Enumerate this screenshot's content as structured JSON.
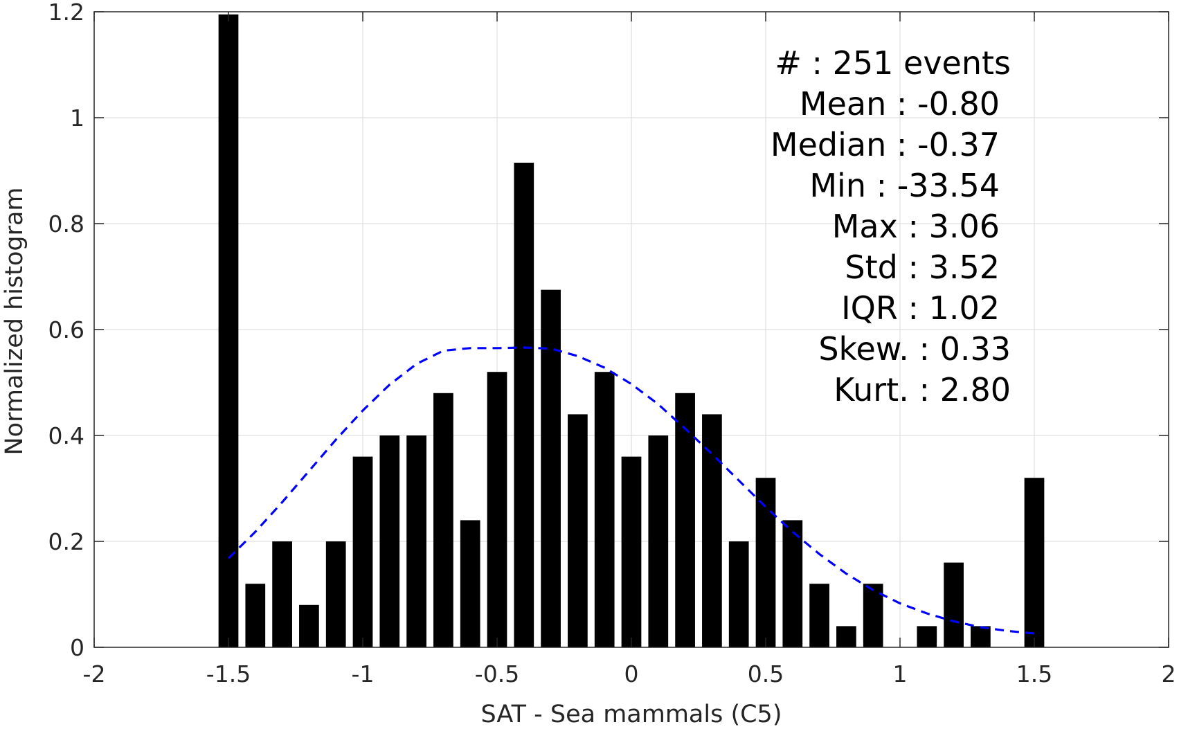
{
  "chart_data": {
    "type": "bar",
    "title": "",
    "xlabel": "SAT - Sea mammals (C5)",
    "ylabel": "Normalized histogram",
    "xlim": [
      -2,
      2
    ],
    "ylim": [
      0,
      1.2
    ],
    "grid": true,
    "x_ticks": [
      "-2",
      "-1.5",
      "-1",
      "-0.5",
      "0",
      "0.5",
      "1",
      "1.5",
      "2"
    ],
    "y_ticks": [
      "0",
      "0.2",
      "0.4",
      "0.6",
      "0.8",
      "1",
      "1.2"
    ],
    "bar_color": "#000000",
    "bin_width": 0.1,
    "bins": {
      "x": [
        -1.5,
        -1.4,
        -1.3,
        -1.2,
        -1.1,
        -1.0,
        -0.9,
        -0.8,
        -0.7,
        -0.6,
        -0.5,
        -0.4,
        -0.3,
        -0.2,
        -0.1,
        0.0,
        0.1,
        0.2,
        0.3,
        0.4,
        0.5,
        0.6,
        0.7,
        0.8,
        0.9,
        1.0,
        1.1,
        1.2,
        1.3,
        1.4,
        1.5
      ],
      "values": [
        1.195,
        0.12,
        0.2,
        0.08,
        0.2,
        0.36,
        0.4,
        0.4,
        0.48,
        0.24,
        0.52,
        0.915,
        0.675,
        0.44,
        0.52,
        0.36,
        0.4,
        0.48,
        0.44,
        0.2,
        0.32,
        0.24,
        0.12,
        0.04,
        0.12,
        0,
        0.04,
        0.16,
        0.04,
        0,
        0.32
      ]
    },
    "fit_curve": {
      "style": "dashed",
      "color": "#0000ff",
      "x": [
        -1.5,
        -1.4,
        -1.3,
        -1.2,
        -1.1,
        -1.0,
        -0.9,
        -0.8,
        -0.7,
        -0.6,
        -0.5,
        -0.4,
        -0.3,
        -0.2,
        -0.1,
        0.0,
        0.1,
        0.2,
        0.3,
        0.4,
        0.5,
        0.6,
        0.7,
        0.8,
        0.9,
        1.0,
        1.1,
        1.2,
        1.3,
        1.4,
        1.5
      ],
      "y": [
        0.168,
        0.218,
        0.274,
        0.333,
        0.392,
        0.447,
        0.496,
        0.535,
        0.56,
        0.565,
        0.565,
        0.566,
        0.564,
        0.55,
        0.528,
        0.497,
        0.459,
        0.413,
        0.365,
        0.315,
        0.265,
        0.218,
        0.176,
        0.139,
        0.108,
        0.083,
        0.064,
        0.049,
        0.038,
        0.031,
        0.026
      ]
    },
    "stats": {
      "lines": [
        "#  : 251 events",
        "Mean : -0.80",
        "Median : -0.37",
        "Min : -33.54",
        "Max : 3.06",
        "Std : 3.52",
        "IQR : 1.02",
        "Skew. : 0.33",
        "Kurt. : 2.80"
      ]
    }
  }
}
